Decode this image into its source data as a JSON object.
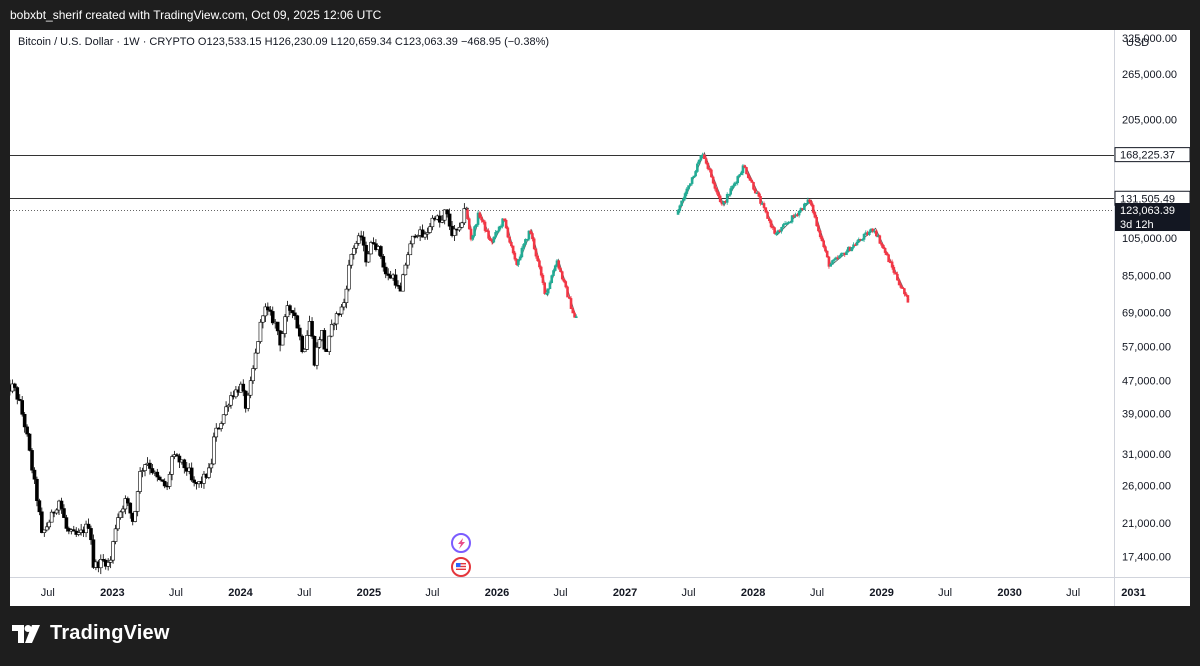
{
  "header": {
    "caption": "bobxbt_sherif created with TradingView.com, Oct 09, 2025 12:06 UTC"
  },
  "legend": {
    "symbol": "Bitcoin / U.S. Dollar · 1W · CRYPTO",
    "open": "O123,533.15",
    "high": "H126,230.09",
    "low": "L120,659.34",
    "close": "C123,063.39",
    "change": "−468.95 (−0.38%)"
  },
  "footer": {
    "brand": "TradingView"
  },
  "chart_data": {
    "type": "candlestick",
    "currency": "USD",
    "scale": "log",
    "ylim": [
      15500,
      340000
    ],
    "xlim": [
      "2022-03-01",
      "2030-10-31"
    ],
    "y_ticks": [
      {
        "value": 325000,
        "label": "325,000.00"
      },
      {
        "value": 265000,
        "label": "265,000.00"
      },
      {
        "value": 205000,
        "label": "205,000.00"
      },
      {
        "value": 105000,
        "label": "105,000.00"
      },
      {
        "value": 85000,
        "label": "85,000.00"
      },
      {
        "value": 69000,
        "label": "69,000.00"
      },
      {
        "value": 57000,
        "label": "57,000.00"
      },
      {
        "value": 47000,
        "label": "47,000.00"
      },
      {
        "value": 39000,
        "label": "39,000.00"
      },
      {
        "value": 31000,
        "label": "31,000.00"
      },
      {
        "value": 26000,
        "label": "26,000.00"
      },
      {
        "value": 21000,
        "label": "21,000.00"
      },
      {
        "value": 17400,
        "label": "17,400.00"
      }
    ],
    "x_ticks": [
      {
        "date": "2022-07-01",
        "label": "Jul",
        "bold": false
      },
      {
        "date": "2023-01-01",
        "label": "2023",
        "bold": true
      },
      {
        "date": "2023-07-01",
        "label": "Jul",
        "bold": false
      },
      {
        "date": "2024-01-01",
        "label": "2024",
        "bold": true
      },
      {
        "date": "2024-07-01",
        "label": "Jul",
        "bold": false
      },
      {
        "date": "2025-01-01",
        "label": "2025",
        "bold": true
      },
      {
        "date": "2025-07-01",
        "label": "Jul",
        "bold": false
      },
      {
        "date": "2026-01-01",
        "label": "2026",
        "bold": true
      },
      {
        "date": "2026-07-01",
        "label": "Jul",
        "bold": false
      },
      {
        "date": "2027-01-01",
        "label": "2027",
        "bold": true
      },
      {
        "date": "2027-07-01",
        "label": "Jul",
        "bold": false
      },
      {
        "date": "2028-01-01",
        "label": "2028",
        "bold": true
      },
      {
        "date": "2028-07-01",
        "label": "Jul",
        "bold": false
      },
      {
        "date": "2029-01-01",
        "label": "2029",
        "bold": true
      },
      {
        "date": "2029-07-01",
        "label": "Jul",
        "bold": false
      },
      {
        "date": "2030-01-01",
        "label": "2030",
        "bold": true
      },
      {
        "date": "2030-07-01",
        "label": "Jul",
        "bold": false
      },
      {
        "date": "2030-12-20",
        "label": "2031",
        "bold": true
      }
    ],
    "horizontal_lines": [
      {
        "value": 168225.37,
        "label": "168,225.37",
        "style": "solid"
      },
      {
        "value": 131505.49,
        "label": "131,505.49",
        "style": "solid"
      },
      {
        "value": 123063.39,
        "label": "123,063.39",
        "style": "dotted",
        "countdown": "3d 12h"
      }
    ],
    "price_series": [
      [
        "2022-03-01",
        44000
      ],
      [
        "2022-04-01",
        45500
      ],
      [
        "2022-04-20",
        41000
      ],
      [
        "2022-05-08",
        35000
      ],
      [
        "2022-05-20",
        30000
      ],
      [
        "2022-06-13",
        22500
      ],
      [
        "2022-06-20",
        19500
      ],
      [
        "2022-07-15",
        21500
      ],
      [
        "2022-08-10",
        24000
      ],
      [
        "2022-09-01",
        20000
      ],
      [
        "2022-10-01",
        19500
      ],
      [
        "2022-11-05",
        21000
      ],
      [
        "2022-11-14",
        16500
      ],
      [
        "2022-12-15",
        17000
      ],
      [
        "2023-01-01",
        16600
      ],
      [
        "2023-01-20",
        21500
      ],
      [
        "2023-02-15",
        24000
      ],
      [
        "2023-03-10",
        21000
      ],
      [
        "2023-03-25",
        27500
      ],
      [
        "2023-04-15",
        30000
      ],
      [
        "2023-05-15",
        27000
      ],
      [
        "2023-06-15",
        25500
      ],
      [
        "2023-06-25",
        30500
      ],
      [
        "2023-07-15",
        30000
      ],
      [
        "2023-08-15",
        28000
      ],
      [
        "2023-08-25",
        26000
      ],
      [
        "2023-09-15",
        26300
      ],
      [
        "2023-10-15",
        28500
      ],
      [
        "2023-10-25",
        34500
      ],
      [
        "2023-11-15",
        37500
      ],
      [
        "2023-12-10",
        43000
      ],
      [
        "2024-01-10",
        45500
      ],
      [
        "2024-01-25",
        40000
      ],
      [
        "2024-02-10",
        48000
      ],
      [
        "2024-02-28",
        60000
      ],
      [
        "2024-03-14",
        71000
      ],
      [
        "2024-04-01",
        68000
      ],
      [
        "2024-04-20",
        64000
      ],
      [
        "2024-05-01",
        58000
      ],
      [
        "2024-05-20",
        70000
      ],
      [
        "2024-06-07",
        70500
      ],
      [
        "2024-07-05",
        55000
      ],
      [
        "2024-07-25",
        67000
      ],
      [
        "2024-08-05",
        52000
      ],
      [
        "2024-08-25",
        63000
      ],
      [
        "2024-09-07",
        54000
      ],
      [
        "2024-09-28",
        65500
      ],
      [
        "2024-10-28",
        72000
      ],
      [
        "2024-11-12",
        89000
      ],
      [
        "2024-11-22",
        99000
      ],
      [
        "2024-12-17",
        106000
      ],
      [
        "2024-12-30",
        93000
      ],
      [
        "2025-01-20",
        104000
      ],
      [
        "2025-02-10",
        96000
      ],
      [
        "2025-02-28",
        84000
      ],
      [
        "2025-03-20",
        85000
      ],
      [
        "2025-04-07",
        76000
      ],
      [
        "2025-04-25",
        94000
      ],
      [
        "2025-05-22",
        110000
      ],
      [
        "2025-06-15",
        105000
      ],
      [
        "2025-07-14",
        120000
      ],
      [
        "2025-08-02",
        113000
      ],
      [
        "2025-08-14",
        123000
      ],
      [
        "2025-09-01",
        108000
      ],
      [
        "2025-09-25",
        109000
      ],
      [
        "2025-10-06",
        126000
      ],
      [
        "2025-10-09",
        123063
      ]
    ],
    "projection_1": [
      [
        "2025-10-09",
        123000
      ],
      [
        "2025-10-25",
        104000
      ],
      [
        "2025-11-15",
        121000
      ],
      [
        "2025-12-20",
        102000
      ],
      [
        "2026-01-25",
        117000
      ],
      [
        "2026-03-01",
        90000
      ],
      [
        "2026-04-10",
        110000
      ],
      [
        "2026-05-25",
        76000
      ],
      [
        "2026-06-25",
        93000
      ],
      [
        "2026-08-15",
        67000
      ]
    ],
    "projection_2": [
      [
        "2027-06-01",
        120000
      ],
      [
        "2027-08-15",
        170000
      ],
      [
        "2027-10-10",
        126000
      ],
      [
        "2027-12-10",
        158000
      ],
      [
        "2028-03-10",
        107000
      ],
      [
        "2028-06-15",
        130000
      ],
      [
        "2028-08-10",
        90000
      ],
      [
        "2028-12-15",
        111000
      ],
      [
        "2029-03-20",
        74000
      ]
    ]
  }
}
